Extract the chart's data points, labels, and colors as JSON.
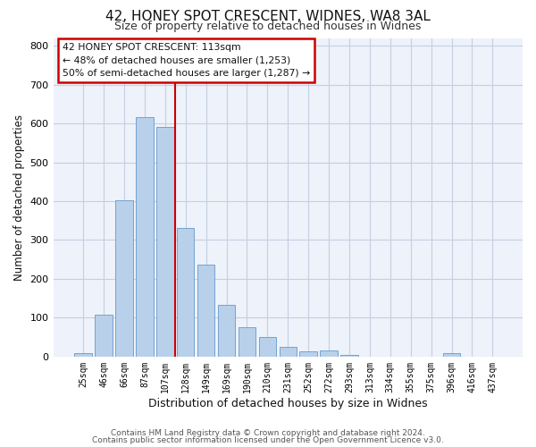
{
  "title": "42, HONEY SPOT CRESCENT, WIDNES, WA8 3AL",
  "subtitle": "Size of property relative to detached houses in Widnes",
  "xlabel": "Distribution of detached houses by size in Widnes",
  "ylabel": "Number of detached properties",
  "bar_labels": [
    "25sqm",
    "46sqm",
    "66sqm",
    "87sqm",
    "107sqm",
    "128sqm",
    "149sqm",
    "169sqm",
    "190sqm",
    "210sqm",
    "231sqm",
    "252sqm",
    "272sqm",
    "293sqm",
    "313sqm",
    "334sqm",
    "355sqm",
    "375sqm",
    "396sqm",
    "416sqm",
    "437sqm"
  ],
  "bar_values": [
    8,
    107,
    403,
    617,
    591,
    330,
    237,
    133,
    76,
    51,
    26,
    13,
    16,
    4,
    0,
    0,
    0,
    0,
    8,
    0,
    0
  ],
  "bar_color": "#b8d0ea",
  "bar_edge_color": "#6699cc",
  "red_line_x": 4.48,
  "ylim": [
    0,
    820
  ],
  "yticks": [
    0,
    100,
    200,
    300,
    400,
    500,
    600,
    700,
    800
  ],
  "annotation_title": "42 HONEY SPOT CRESCENT: 113sqm",
  "annotation_line1": "← 48% of detached houses are smaller (1,253)",
  "annotation_line2": "50% of semi-detached houses are larger (1,287) →",
  "annotation_box_facecolor": "#ffffff",
  "annotation_box_edgecolor": "#cc0000",
  "red_line_color": "#cc0000",
  "footer1": "Contains HM Land Registry data © Crown copyright and database right 2024.",
  "footer2": "Contains public sector information licensed under the Open Government Licence v3.0.",
  "bg_color": "#ffffff",
  "plot_bg_color": "#eef2fa",
  "grid_color": "#c5cfe0",
  "title_color": "#111111",
  "subtitle_color": "#333333"
}
